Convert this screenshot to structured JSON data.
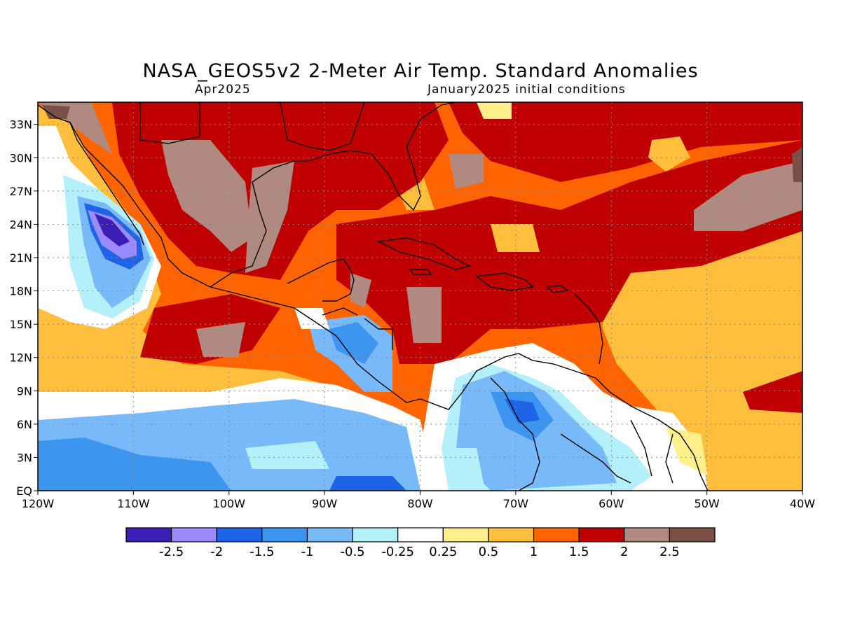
{
  "title": "NASA_GEOS5v2 2-Meter Air Temp. Standard Anomalies",
  "subtitle_left": "Apr2025",
  "subtitle_right": "January2025 initial conditions",
  "map": {
    "lon_range": [
      -120,
      -40
    ],
    "lat_range": [
      0,
      35
    ],
    "lon_ticks": [
      "120W",
      "110W",
      "100W",
      "90W",
      "80W",
      "70W",
      "60W",
      "50W",
      "40W"
    ],
    "lat_ticks": [
      "EQ",
      "3N",
      "6N",
      "9N",
      "12N",
      "15N",
      "18N",
      "21N",
      "24N",
      "27N",
      "30N",
      "33N"
    ],
    "grid": "dotted"
  },
  "colorbar": {
    "colors": [
      "#3c1eb4",
      "#9b8aff",
      "#1e64e6",
      "#3c96f0",
      "#78b9fa",
      "#b4f0fa",
      "#ffffff",
      "#fff08c",
      "#ffbe3c",
      "#ff6400",
      "#c00000",
      "#b08a80",
      "#7a5046"
    ],
    "labels": [
      "-2.5",
      "-2",
      "-1.5",
      "-1",
      "-0.5",
      "-0.25",
      "0.25",
      "0.5",
      "1",
      "1.5",
      "2",
      "2.5"
    ]
  }
}
